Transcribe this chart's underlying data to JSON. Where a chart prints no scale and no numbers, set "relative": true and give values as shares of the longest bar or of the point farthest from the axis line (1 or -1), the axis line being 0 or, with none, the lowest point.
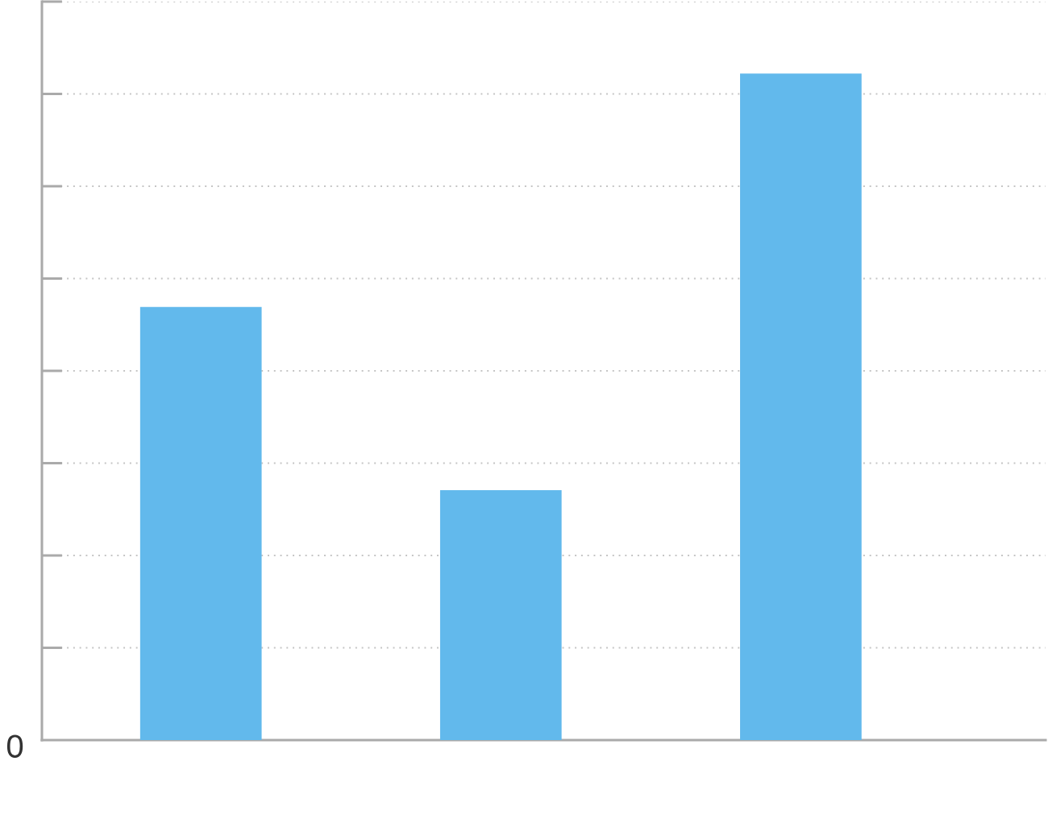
{
  "chart_data": {
    "type": "bar",
    "relative": true,
    "categories": [
      null,
      null,
      null
    ],
    "values": [
      0.65,
      0.375,
      1
    ],
    "color": "#62b9ec",
    "annotations": [
      "0"
    ],
    "grid": "y"
  }
}
